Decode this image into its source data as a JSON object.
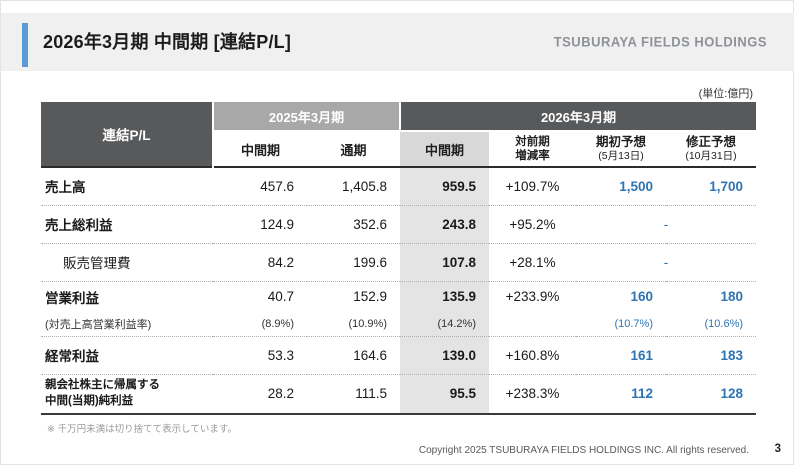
{
  "slide": {
    "title": "2026年3月期 中間期 [連結P/L]",
    "logo": "TSUBURAYA FIELDS HOLDINGS",
    "unit_note": "(単位:億円)",
    "footnote": "※ 千万円未満は切り捨てて表示しています。",
    "copyright": "Copyright 2025 TSUBURAYA FIELDS HOLDINGS INC. All rights reserved.",
    "page_number": "3"
  },
  "colors": {
    "accent_blue": "#5b9bd5",
    "forecast_blue": "#2e74b5",
    "header_dark": "#58595b",
    "header_medium": "#a8a8a8",
    "subheader_gray": "#d8d8d8",
    "highlight_column_gray": "#e4e4e4"
  },
  "table": {
    "corner_label": "連結P/L",
    "group_2025": "2025年3月期",
    "group_2026": "2026年3月期",
    "headers": {
      "h_interim_2025": "中間期",
      "h_fullyear_2025": "通期",
      "h_interim_2026": "中間期",
      "h_yoy_line1": "対前期",
      "h_yoy_line2": "増減率",
      "h_initial_line1": "期初予想",
      "h_initial_line2": "(5月13日)",
      "h_revised_line1": "修正予想",
      "h_revised_line2": "(10月31日)"
    },
    "rows": [
      {
        "label": "売上高",
        "c1": "457.6",
        "c2": "1,405.8",
        "c3": "959.5",
        "c4": "+109.7%",
        "c5": "1,500",
        "c6": "1,700"
      },
      {
        "label": "売上総利益",
        "c1": "124.9",
        "c2": "352.6",
        "c3": "243.8",
        "c4": "+95.2%",
        "merged": "-"
      },
      {
        "label": "販売管理費",
        "c1": "84.2",
        "c2": "199.6",
        "c3": "107.8",
        "c4": "+28.1%",
        "merged": "-"
      },
      {
        "label": "営業利益",
        "c1": "40.7",
        "c2": "152.9",
        "c3": "135.9",
        "c4": "+233.9%",
        "c5": "160",
        "c6": "180"
      },
      {
        "label": "(対売上高営業利益率)",
        "c1": "(8.9%)",
        "c2": "(10.9%)",
        "c3": "(14.2%)",
        "c4": "",
        "c5": "(10.7%)",
        "c6": "(10.6%)"
      },
      {
        "label": "経常利益",
        "c1": "53.3",
        "c2": "164.6",
        "c3": "139.0",
        "c4": "+160.8%",
        "c5": "161",
        "c6": "183"
      },
      {
        "label_line1": "親会社株主に帰属する",
        "label_line2": "中間(当期)純利益",
        "c1": "28.2",
        "c2": "111.5",
        "c3": "95.5",
        "c4": "+238.3%",
        "c5": "112",
        "c6": "128"
      }
    ]
  }
}
